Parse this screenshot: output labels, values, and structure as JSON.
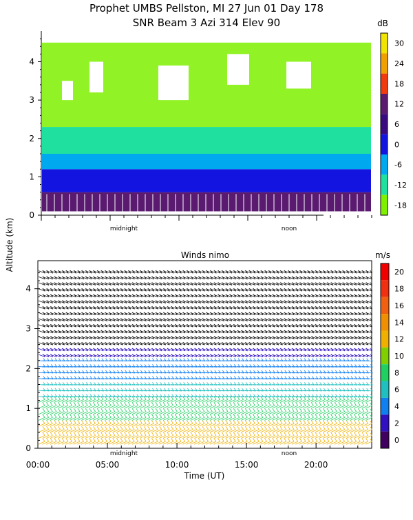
{
  "figure": {
    "title_line1": "Prophet  UMBS Pellston, MI  27 Jun 01 Day 178",
    "title_line2": "SNR Beam 3 Azi 314 Elev 90",
    "shared_ylabel": "Altitude (km)",
    "xlabel": "Time (UT)"
  },
  "chart_data": [
    {
      "type": "heatmap",
      "title": "SNR Beam 3 Azi 314 Elev 90",
      "ylabel": "Altitude (km)",
      "ylim": [
        0,
        4.8
      ],
      "yticks": [
        "0",
        "1",
        "2",
        "3",
        "4"
      ],
      "xlim": [
        0,
        24
      ],
      "day_markers": [
        "midnight",
        "noon"
      ],
      "colorbar": {
        "unit": "dB",
        "ticks": [
          "30",
          "24",
          "18",
          "12",
          "6",
          "0",
          "-6",
          "-12",
          "-18"
        ],
        "colors": [
          "#f0e400",
          "#f0a000",
          "#f03a10",
          "#5a1a70",
          "#3a0a80",
          "#1414e0",
          "#00a8f0",
          "#20e0a0",
          "#7ef000"
        ]
      },
      "approx_layers": [
        {
          "label": "strong echo (dark purple)",
          "altitude_km": [
            0.1,
            0.6
          ],
          "snr_db": 12
        },
        {
          "label": "blue",
          "altitude_km": [
            0.6,
            1.2
          ],
          "snr_db": 2
        },
        {
          "label": "cyan",
          "altitude_km": [
            1.2,
            1.6
          ],
          "snr_db": -6
        },
        {
          "label": "green",
          "altitude_km": [
            1.6,
            2.3
          ],
          "snr_db": -12
        },
        {
          "label": "light green",
          "altitude_km": [
            2.3,
            4.5
          ],
          "snr_db": -18
        }
      ]
    },
    {
      "type": "wind-barbs",
      "title": "Winds nimo",
      "ylabel": "Altitude (km)",
      "ylim": [
        0,
        4.6
      ],
      "yticks": [
        "0",
        "1",
        "2",
        "3",
        "4"
      ],
      "xlabel": "Time (UT)",
      "xlim": [
        0,
        24
      ],
      "xticks": [
        "00:00",
        "05:00",
        "10:00",
        "15:00",
        "20:00"
      ],
      "xtick_values": [
        0,
        5,
        10,
        15,
        20
      ],
      "day_markers": [
        "midnight",
        "noon"
      ],
      "colorbar": {
        "unit": "m/s",
        "ticks": [
          "20",
          "18",
          "16",
          "14",
          "12",
          "10",
          "8",
          "6",
          "4",
          "2",
          "0"
        ],
        "colors": [
          "#f00000",
          "#f03010",
          "#f06010",
          "#f09000",
          "#f0b000",
          "#80d000",
          "#20d060",
          "#20c0c0",
          "#1080f0",
          "#3010c0",
          "#400060"
        ]
      },
      "speed_layers": [
        {
          "altitude_km": [
            0.0,
            0.7
          ],
          "speed_ms": 13
        },
        {
          "altitude_km": [
            0.7,
            1.2
          ],
          "speed_ms": 9
        },
        {
          "altitude_km": [
            1.2,
            1.6
          ],
          "speed_ms": 6
        },
        {
          "altitude_km": [
            1.6,
            2.3
          ],
          "speed_ms": 4
        },
        {
          "altitude_km": [
            2.3,
            4.5
          ],
          "speed_ms": 2
        }
      ]
    }
  ]
}
